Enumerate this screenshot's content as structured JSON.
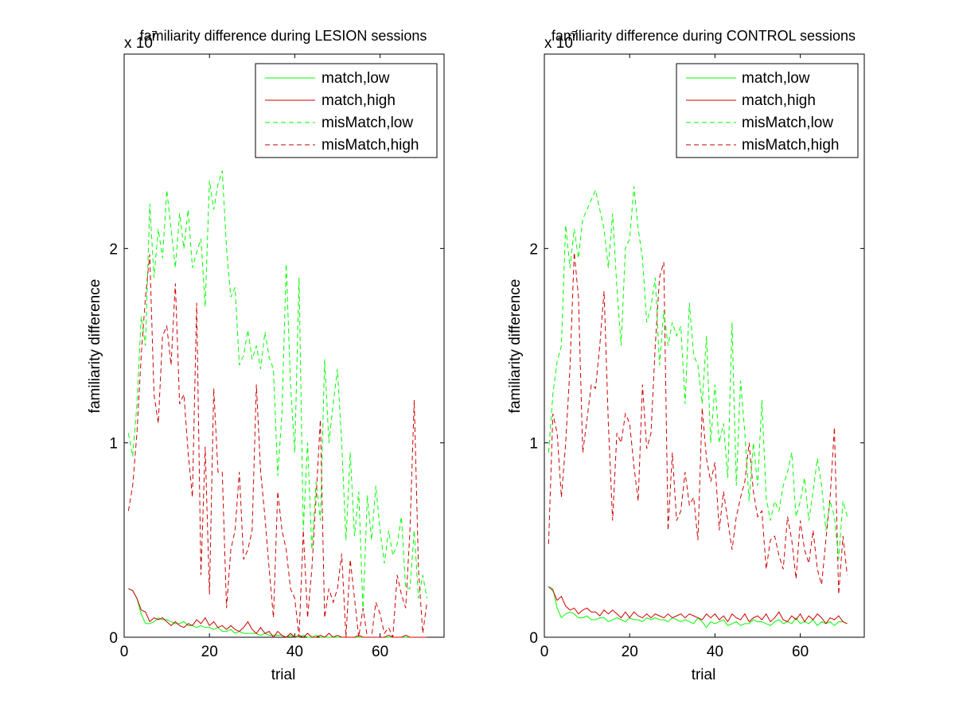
{
  "figure": {
    "background": "#ffffff",
    "line_colors": {
      "green": "#00ff00",
      "red": "#cc0000"
    }
  },
  "chart_data": [
    {
      "type": "line",
      "title": "familiarity difference during LESION sessions",
      "xlabel": "trial",
      "ylabel": "familiarity difference",
      "y_exponent_label": "x 10",
      "y_exponent_power": "-7",
      "xlim": [
        0,
        75
      ],
      "ylim": [
        0,
        3
      ],
      "xticks": [
        0,
        20,
        40,
        60
      ],
      "yticks": [
        0,
        1,
        2
      ],
      "grid": false,
      "legend_position": "top-right",
      "series": [
        {
          "name": "match,low",
          "color": "#00ff00",
          "dash": "solid",
          "y": [
            0.25,
            0.24,
            0.2,
            0.12,
            0.07,
            0.07,
            0.08,
            0.1,
            0.09,
            0.09,
            0.08,
            0.07,
            0.07,
            0.08,
            0.06,
            0.06,
            0.05,
            0.06,
            0.05,
            0.05,
            0.04,
            0.05,
            0.03,
            0.03,
            0.04,
            0.02,
            0.03,
            0.02,
            0.02,
            0.02,
            0.02,
            0.01,
            0.02,
            0.01,
            0.01,
            0.01,
            0.01,
            0.0,
            0.01,
            0.0,
            0.0,
            0.01,
            0.0,
            0.0,
            0.01,
            0.0,
            0.0,
            0.0,
            0.0,
            0.0,
            0.0,
            0.0,
            0.0,
            0.0,
            0.0,
            0.0,
            0.0,
            0.0,
            0.0,
            0.0,
            0.0,
            0.0,
            0.0,
            0.0,
            0.0,
            0.0,
            0.0,
            0.0,
            0.0,
            0.0,
            0.0
          ]
        },
        {
          "name": "match,high",
          "color": "#cc0000",
          "dash": "solid",
          "y": [
            0.25,
            0.24,
            0.2,
            0.14,
            0.13,
            0.08,
            0.1,
            0.09,
            0.1,
            0.08,
            0.06,
            0.08,
            0.06,
            0.05,
            0.07,
            0.06,
            0.09,
            0.07,
            0.1,
            0.06,
            0.08,
            0.05,
            0.06,
            0.04,
            0.06,
            0.04,
            0.03,
            0.05,
            0.08,
            0.04,
            0.02,
            0.05,
            0.02,
            0.03,
            0.0,
            0.03,
            0.01,
            0.0,
            0.02,
            0.0,
            0.01,
            0.0,
            0.02,
            0.0,
            0.0,
            0.01,
            0.0,
            0.02,
            0.0,
            0.01,
            0.0,
            0.0,
            0.0,
            0.0,
            0.01,
            0.0,
            0.0,
            0.0,
            0.0,
            0.0,
            0.0,
            0.01,
            0.0,
            0.0,
            0.0,
            0.01,
            0.0,
            0.0,
            0.0,
            0.0,
            0.0
          ]
        },
        {
          "name": "misMatch,low",
          "color": "#00ff00",
          "dash": "dashed",
          "y": [
            1.05,
            0.93,
            1.2,
            1.65,
            1.5,
            2.23,
            1.85,
            2.1,
            1.95,
            2.3,
            2.1,
            1.9,
            2.18,
            2.0,
            2.2,
            1.9,
            1.98,
            2.05,
            1.7,
            2.35,
            2.2,
            2.33,
            2.4,
            2.0,
            1.75,
            1.8,
            1.4,
            1.45,
            1.58,
            1.43,
            1.5,
            1.38,
            1.57,
            1.44,
            1.38,
            0.83,
            1.15,
            1.92,
            1.3,
            0.95,
            1.85,
            0.55,
            1.0,
            0.45,
            0.8,
            0.6,
            1.43,
            1.0,
            1.2,
            1.38,
            1.0,
            0.5,
            0.95,
            0.52,
            0.75,
            0.13,
            0.73,
            0.5,
            0.78,
            0.55,
            0.38,
            0.55,
            0.42,
            0.48,
            0.62,
            0.25,
            0.25,
            0.55,
            0.2,
            0.32,
            0.2
          ]
        },
        {
          "name": "misMatch,high",
          "color": "#cc0000",
          "dash": "dashed",
          "y": [
            0.65,
            0.78,
            1.05,
            1.45,
            1.75,
            1.97,
            1.25,
            1.1,
            1.55,
            1.6,
            1.4,
            1.82,
            1.2,
            1.25,
            0.95,
            0.72,
            1.72,
            0.32,
            0.98,
            0.22,
            1.28,
            0.85,
            0.85,
            0.15,
            0.45,
            0.55,
            0.85,
            0.4,
            0.45,
            0.55,
            1.3,
            0.85,
            0.62,
            0.35,
            0.1,
            0.75,
            0.55,
            0.45,
            0.25,
            0.2,
            0.0,
            0.55,
            0.1,
            0.35,
            0.72,
            1.12,
            0.1,
            0.25,
            0.18,
            0.25,
            0.43,
            0.0,
            0.4,
            0.2,
            0.0,
            0.15,
            0.0,
            0.0,
            0.18,
            0.12,
            0.02,
            0.05,
            0.0,
            0.32,
            0.22,
            0.15,
            0.55,
            1.22,
            0.35,
            0.02,
            0.18
          ]
        }
      ]
    },
    {
      "type": "line",
      "title": "familiarity difference during CONTROL sessions",
      "xlabel": "trial",
      "ylabel": "familiarity difference",
      "y_exponent_label": "x 10",
      "y_exponent_power": "-7",
      "xlim": [
        0,
        75
      ],
      "ylim": [
        0,
        3
      ],
      "xticks": [
        0,
        20,
        40,
        60
      ],
      "yticks": [
        0,
        1,
        2
      ],
      "grid": false,
      "legend_position": "top-right",
      "series": [
        {
          "name": "match,low",
          "color": "#00ff00",
          "dash": "solid",
          "y": [
            0.26,
            0.25,
            0.15,
            0.1,
            0.12,
            0.13,
            0.12,
            0.1,
            0.1,
            0.11,
            0.09,
            0.09,
            0.1,
            0.1,
            0.08,
            0.09,
            0.1,
            0.09,
            0.08,
            0.1,
            0.09,
            0.09,
            0.08,
            0.1,
            0.09,
            0.1,
            0.09,
            0.09,
            0.08,
            0.1,
            0.09,
            0.08,
            0.09,
            0.08,
            0.07,
            0.1,
            0.08,
            0.05,
            0.08,
            0.07,
            0.08,
            0.09,
            0.06,
            0.07,
            0.08,
            0.06,
            0.07,
            0.07,
            0.09,
            0.08,
            0.08,
            0.07,
            0.06,
            0.08,
            0.09,
            0.07,
            0.08,
            0.07,
            0.1,
            0.07,
            0.08,
            0.07,
            0.09,
            0.06,
            0.08,
            0.07,
            0.08,
            0.06,
            0.08,
            0.08,
            0.07
          ]
        },
        {
          "name": "match,high",
          "color": "#cc0000",
          "dash": "solid",
          "y": [
            0.26,
            0.24,
            0.19,
            0.21,
            0.16,
            0.14,
            0.15,
            0.12,
            0.14,
            0.15,
            0.13,
            0.13,
            0.11,
            0.14,
            0.12,
            0.14,
            0.12,
            0.1,
            0.13,
            0.1,
            0.13,
            0.11,
            0.1,
            0.12,
            0.1,
            0.12,
            0.11,
            0.1,
            0.12,
            0.1,
            0.11,
            0.12,
            0.1,
            0.12,
            0.11,
            0.1,
            0.09,
            0.12,
            0.1,
            0.12,
            0.09,
            0.11,
            0.08,
            0.12,
            0.1,
            0.09,
            0.12,
            0.08,
            0.1,
            0.11,
            0.09,
            0.12,
            0.08,
            0.1,
            0.13,
            0.09,
            0.08,
            0.11,
            0.09,
            0.12,
            0.08,
            0.11,
            0.09,
            0.12,
            0.1,
            0.07,
            0.1,
            0.09,
            0.11,
            0.08,
            0.07
          ]
        },
        {
          "name": "misMatch,high",
          "color": "#cc0000",
          "dash": "dashed",
          "y": [
            0.48,
            1.15,
            1.05,
            0.72,
            1.0,
            1.38,
            1.98,
            1.75,
            0.95,
            1.12,
            1.3,
            1.28,
            1.5,
            1.78,
            1.1,
            0.6,
            1.05,
            1.0,
            1.15,
            1.1,
            0.88,
            0.7,
            1.3,
            0.97,
            1.05,
            1.5,
            1.85,
            1.93,
            0.55,
            0.95,
            0.6,
            0.65,
            0.85,
            0.68,
            0.72,
            0.5,
            1.18,
            0.92,
            0.8,
            0.9,
            0.55,
            0.75,
            0.6,
            0.45,
            0.62,
            0.72,
            0.8,
            1.0,
            0.75,
            0.62,
            0.65,
            0.35,
            0.5,
            0.52,
            0.42,
            0.35,
            0.62,
            0.5,
            0.3,
            0.6,
            0.45,
            0.38,
            0.55,
            0.35,
            0.27,
            0.5,
            0.72,
            1.08,
            0.22,
            0.52,
            0.32
          ]
        },
        {
          "name": "misMatch,low",
          "color": "#00ff00",
          "dash": "dashed",
          "y": [
            0.95,
            1.25,
            1.42,
            1.5,
            2.12,
            1.9,
            2.1,
            1.95,
            2.15,
            2.2,
            2.25,
            2.3,
            2.2,
            2.1,
            1.9,
            2.18,
            1.8,
            1.5,
            2.0,
            2.05,
            2.32,
            2.1,
            1.95,
            1.62,
            1.7,
            1.85,
            1.4,
            1.68,
            1.5,
            1.62,
            1.55,
            1.6,
            1.2,
            1.72,
            1.45,
            1.4,
            1.2,
            1.55,
            1.0,
            1.3,
            1.0,
            1.1,
            0.82,
            1.62,
            0.78,
            1.32,
            1.05,
            0.7,
            1.0,
            0.78,
            1.22,
            0.72,
            0.6,
            0.7,
            0.65,
            0.78,
            0.85,
            0.95,
            0.62,
            0.7,
            0.82,
            0.6,
            0.75,
            0.92,
            0.78,
            0.55,
            0.7,
            0.62,
            0.4,
            0.7,
            0.62
          ]
        }
      ]
    }
  ]
}
